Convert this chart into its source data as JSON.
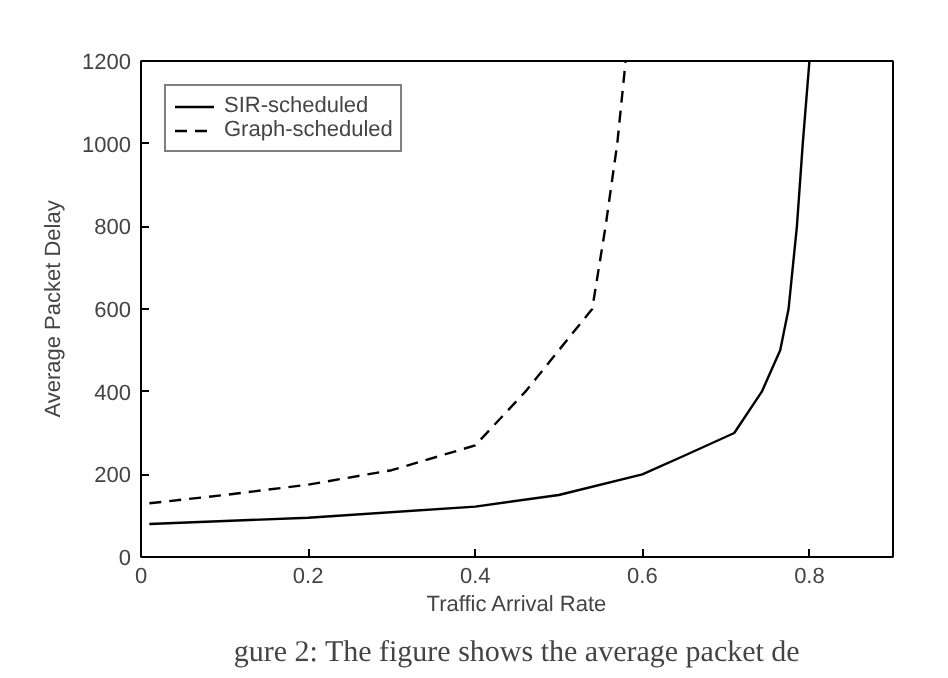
{
  "chart_data": {
    "type": "line",
    "xlabel": "Traffic Arrival Rate",
    "ylabel": "Average Packet Delay",
    "xlim": [
      0,
      0.9
    ],
    "ylim": [
      0,
      1200
    ],
    "xticks": [
      0,
      0.2,
      0.4,
      0.6,
      0.8
    ],
    "yticks": [
      0,
      200,
      400,
      600,
      800,
      1000,
      1200
    ],
    "grid": false,
    "legend": "top left",
    "marker": "none",
    "annotations": [
      "gure 2: The figure shows the average packet de"
    ],
    "series": [
      {
        "name": "SIR-scheduled",
        "color": "#000000",
        "line_style": "solid",
        "x": [
          0.01,
          0.2,
          0.4,
          0.5,
          0.6,
          0.65,
          0.71,
          0.743,
          0.765,
          0.775,
          0.785,
          0.792,
          0.8
        ],
        "values": [
          80,
          95,
          122,
          150,
          200,
          245,
          300,
          400,
          500,
          600,
          800,
          1000,
          1200
        ]
      },
      {
        "name": "Graph-scheduled",
        "color": "#000000",
        "line_style": "dashed",
        "x": [
          0.01,
          0.1,
          0.2,
          0.3,
          0.4,
          0.46,
          0.5,
          0.54,
          0.556,
          0.57,
          0.58
        ],
        "values": [
          130,
          150,
          175,
          210,
          270,
          400,
          500,
          600,
          800,
          1000,
          1200
        ]
      }
    ]
  }
}
